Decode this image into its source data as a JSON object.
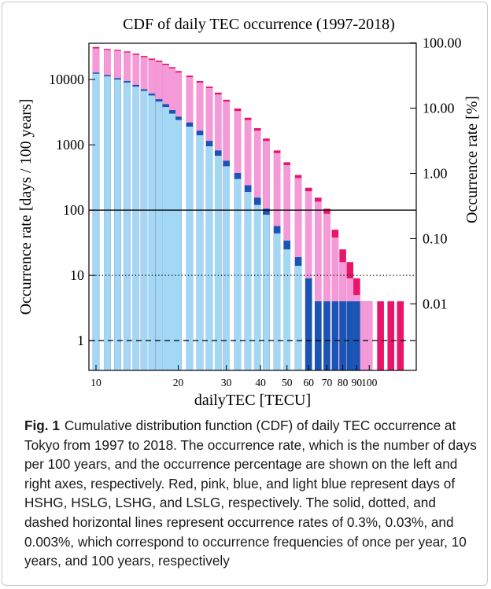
{
  "chart_data": {
    "type": "bar",
    "title": "CDF of daily TEC occurrence (1997-2018)",
    "xlabel": "dailyTEC [TECU]",
    "ylabel_left": "Occurrence rate  [days / 100 years]",
    "ylabel_right": "Occurrence rate [%]",
    "x_scale": "log",
    "y_scale": "log",
    "xlim": [
      10,
      140
    ],
    "ylim_left": [
      0.35,
      36000
    ],
    "x_ticks": [
      10,
      20,
      30,
      40,
      50,
      60,
      70,
      80,
      90,
      100
    ],
    "x_tick_labels": [
      "10",
      "20",
      "30",
      "40",
      "50",
      "60",
      "70",
      "80",
      "90",
      "100"
    ],
    "y_left_ticks": [
      1,
      10,
      100,
      1000,
      10000
    ],
    "y_left_tick_labels": [
      "1",
      "10",
      "100",
      "1000",
      "10000"
    ],
    "y_right_ticks": [
      0.01,
      0.1,
      1,
      10,
      100
    ],
    "y_right_tick_labels": [
      "0.01",
      "0.10",
      "1.00",
      "10.00",
      "100.00"
    ],
    "x": [
      10,
      11,
      12,
      13,
      14,
      15,
      16,
      17,
      18,
      19,
      20,
      22,
      24,
      26,
      28,
      30,
      33,
      36,
      39,
      42,
      46,
      50,
      55,
      60,
      65,
      70,
      75,
      80,
      85,
      90,
      95,
      100,
      110,
      120,
      130
    ],
    "series": [
      {
        "key": "HSHG",
        "color": "#e8156a",
        "values": [
          31500,
          29500,
          28500,
          27000,
          25000,
          23000,
          21000,
          19500,
          17500,
          15500,
          13500,
          11500,
          9500,
          7800,
          6300,
          4900,
          3600,
          2600,
          1800,
          1250,
          820,
          540,
          345,
          220,
          155,
          105,
          50,
          25,
          16,
          9,
          4,
          4,
          4,
          4,
          4
        ]
      },
      {
        "key": "HSLG",
        "color": "#f59ad8",
        "values": [
          30000,
          28500,
          27500,
          26000,
          24000,
          22000,
          20000,
          18600,
          16700,
          14800,
          12800,
          10900,
          9000,
          7400,
          5900,
          4600,
          3300,
          2400,
          1650,
          1150,
          750,
          490,
          310,
          195,
          135,
          88,
          38,
          16,
          9,
          5,
          4,
          4,
          0,
          0,
          0
        ]
      },
      {
        "key": "LSHG",
        "color": "#1a55b5",
        "values": [
          12800,
          11700,
          10500,
          9500,
          8300,
          7100,
          6100,
          5000,
          4200,
          3400,
          2700,
          2200,
          1650,
          1150,
          820,
          570,
          370,
          240,
          155,
          105,
          57,
          34,
          19,
          9,
          4,
          4,
          4,
          4,
          4,
          4,
          0,
          0,
          0,
          0,
          0
        ]
      },
      {
        "key": "LSLG",
        "color": "#a3d8f5",
        "values": [
          12300,
          11200,
          10000,
          9000,
          7800,
          6700,
          5700,
          4600,
          3800,
          3000,
          2400,
          1900,
          1400,
          950,
          680,
          470,
          300,
          190,
          120,
          85,
          44,
          25,
          14,
          0,
          0,
          0,
          0,
          0,
          0,
          0,
          0,
          0,
          0,
          0,
          0
        ]
      }
    ],
    "reference_lines": [
      {
        "y": 100,
        "style": "solid"
      },
      {
        "y": 10,
        "style": "dotted"
      },
      {
        "y": 1,
        "style": "dashed"
      }
    ],
    "grid": false
  },
  "caption": {
    "label": "Fig. 1",
    "text": "Cumulative distribution function (CDF) of daily TEC occurrence at Tokyo from 1997 to 2018. The occurrence rate, which is the number of days per 100 years, and the occurrence percentage are shown on the left and right axes, respectively. Red, pink, blue, and light blue represent days of HSHG, HSLG, LSHG, and LSLG, respectively. The solid, dotted, and dashed horizontal lines represent occurrence rates of 0.3%, 0.03%, and 0.003%, which correspond to occurrence frequencies of once per year, 10 years, and 100 years, respectively"
  }
}
